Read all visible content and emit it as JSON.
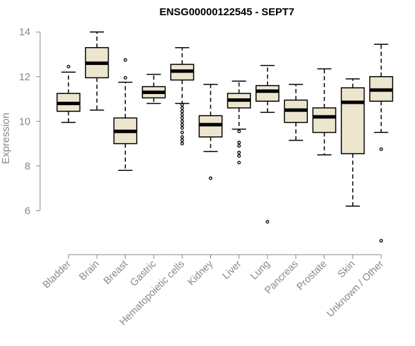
{
  "chart_data": {
    "type": "boxplot",
    "title": "ENSG00000122545 - SEPT7",
    "xlabel": "",
    "ylabel": "Expression",
    "ylim": [
      4.4,
      14.1
    ],
    "yticks": [
      6,
      8,
      10,
      12,
      14
    ],
    "box_fill": "#ede6cf",
    "median_color": "#000000",
    "axis_color": "#888888",
    "categories": [
      "Bladder",
      "Brain",
      "Breast",
      "Gastric",
      "Hematopoietic cells",
      "Kidney",
      "Liver",
      "Lung",
      "Pancreas",
      "Prostate",
      "Skin",
      "Unknown / Other"
    ],
    "boxes": [
      {
        "category": "Bladder",
        "whisker_low": 9.95,
        "q1": 10.45,
        "median": 10.8,
        "q3": 11.25,
        "whisker_high": 12.2,
        "outliers": [
          12.45
        ]
      },
      {
        "category": "Brain",
        "whisker_low": 10.5,
        "q1": 11.95,
        "median": 12.6,
        "q3": 13.3,
        "whisker_high": 14.0,
        "outliers": []
      },
      {
        "category": "Breast",
        "whisker_low": 7.8,
        "q1": 9.0,
        "median": 9.55,
        "q3": 10.15,
        "whisker_high": 11.75,
        "outliers": [
          11.95,
          12.75
        ]
      },
      {
        "category": "Gastric",
        "whisker_low": 10.8,
        "q1": 11.05,
        "median": 11.3,
        "q3": 11.55,
        "whisker_high": 12.1,
        "outliers": []
      },
      {
        "category": "Hematopoietic cells",
        "whisker_low": 10.8,
        "q1": 11.85,
        "median": 12.25,
        "q3": 12.55,
        "whisker_high": 13.3,
        "outliers": [
          10.75,
          10.6,
          10.45,
          10.3,
          10.15,
          10.0,
          9.85,
          9.7,
          9.5,
          9.3,
          9.15,
          9.0
        ]
      },
      {
        "category": "Kidney",
        "whisker_low": 8.65,
        "q1": 9.3,
        "median": 9.85,
        "q3": 10.25,
        "whisker_high": 11.65,
        "outliers": [
          7.45
        ]
      },
      {
        "category": "Liver",
        "whisker_low": 9.65,
        "q1": 10.6,
        "median": 10.95,
        "q3": 11.25,
        "whisker_high": 11.8,
        "outliers": [
          9.55,
          9.05,
          8.9,
          8.6,
          8.45,
          8.15
        ]
      },
      {
        "category": "Lung",
        "whisker_low": 10.4,
        "q1": 10.9,
        "median": 11.35,
        "q3": 11.6,
        "whisker_high": 12.5,
        "outliers": [
          5.5
        ]
      },
      {
        "category": "Pancreas",
        "whisker_low": 9.15,
        "q1": 9.95,
        "median": 10.5,
        "q3": 10.95,
        "whisker_high": 11.65,
        "outliers": []
      },
      {
        "category": "Prostate",
        "whisker_low": 8.5,
        "q1": 9.5,
        "median": 10.2,
        "q3": 10.6,
        "whisker_high": 12.35,
        "outliers": []
      },
      {
        "category": "Skin",
        "whisker_low": 6.2,
        "q1": 8.55,
        "median": 10.85,
        "q3": 11.5,
        "whisker_high": 11.9,
        "outliers": []
      },
      {
        "category": "Unknown / Other",
        "whisker_low": 9.5,
        "q1": 10.9,
        "median": 11.4,
        "q3": 12.0,
        "whisker_high": 13.45,
        "outliers": [
          8.75,
          4.65
        ]
      }
    ]
  }
}
